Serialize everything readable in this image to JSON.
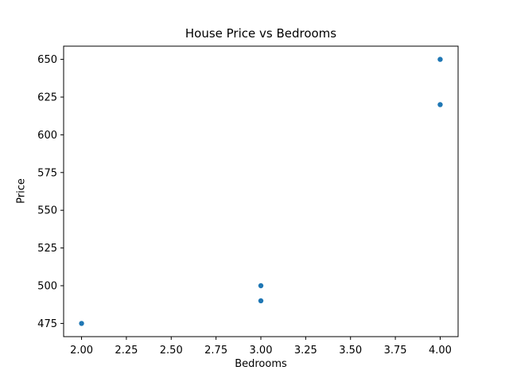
{
  "chart_data": {
    "type": "scatter",
    "title": "House Price vs Bedrooms",
    "xlabel": "Bedrooms",
    "ylabel": "Price",
    "x": [
      2,
      3,
      3,
      4,
      4
    ],
    "y": [
      475,
      490,
      500,
      620,
      650
    ],
    "xlim": [
      1.9,
      4.1
    ],
    "ylim": [
      466.25,
      658.75
    ],
    "xticks": [
      2.0,
      2.25,
      2.5,
      2.75,
      3.0,
      3.25,
      3.5,
      3.75,
      4.0
    ],
    "xtick_labels": [
      "2.00",
      "2.25",
      "2.50",
      "2.75",
      "3.00",
      "3.25",
      "3.50",
      "3.75",
      "4.00"
    ],
    "yticks": [
      475,
      500,
      525,
      550,
      575,
      600,
      625,
      650
    ],
    "ytick_labels": [
      "475",
      "500",
      "525",
      "550",
      "575",
      "600",
      "625",
      "650"
    ],
    "grid": false,
    "legend": null,
    "marker_color": "#1f77b4",
    "marker_radius": 3.2,
    "axis_color": "#000000",
    "text_color": "#000000",
    "background": "#ffffff"
  }
}
